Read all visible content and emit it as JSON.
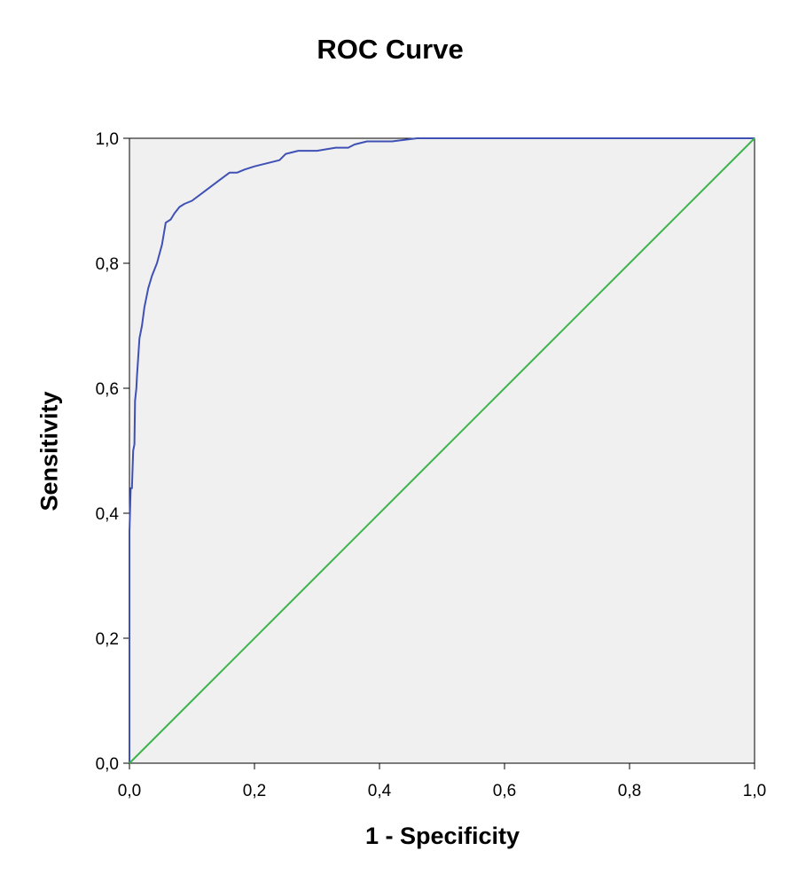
{
  "chart_data": {
    "type": "line",
    "title": "ROC Curve",
    "xlabel": "1 - Specificity",
    "ylabel": "Sensitivity",
    "xlim": [
      0,
      1
    ],
    "ylim": [
      0,
      1
    ],
    "x_ticks": [
      "0,0",
      "0,2",
      "0,4",
      "0,6",
      "0,8",
      "1,0"
    ],
    "y_ticks": [
      "0,0",
      "0,2",
      "0,4",
      "0,6",
      "0,8",
      "1,0"
    ],
    "grid": false,
    "legend": "none",
    "colors": {
      "plot_background": "#f0f0f0",
      "roc": "#3f51b5",
      "reference": "#3cb44b"
    },
    "series": [
      {
        "color": "#3f51b5",
        "x": [
          0,
          0,
          0.002,
          0.004,
          0.006,
          0.008,
          0.009,
          0.011,
          0.012,
          0.014,
          0.016,
          0.02,
          0.024,
          0.03,
          0.036,
          0.044,
          0.052,
          0.058,
          0.066,
          0.072,
          0.08,
          0.088,
          0.1,
          0.12,
          0.14,
          0.16,
          0.172,
          0.184,
          0.2,
          0.22,
          0.24,
          0.25,
          0.27,
          0.3,
          0.33,
          0.35,
          0.36,
          0.38,
          0.42,
          0.46,
          0.48,
          0.6,
          0.8,
          1.0
        ],
        "y": [
          0,
          0.37,
          0.44,
          0.44,
          0.5,
          0.51,
          0.58,
          0.6,
          0.62,
          0.65,
          0.68,
          0.7,
          0.73,
          0.76,
          0.78,
          0.8,
          0.83,
          0.865,
          0.87,
          0.88,
          0.89,
          0.895,
          0.9,
          0.915,
          0.93,
          0.945,
          0.945,
          0.95,
          0.955,
          0.96,
          0.965,
          0.975,
          0.98,
          0.98,
          0.985,
          0.985,
          0.99,
          0.995,
          0.995,
          1.0,
          1.0,
          1.0,
          1.0,
          1.0
        ]
      },
      {
        "color": "#3cb44b",
        "x": [
          0,
          1
        ],
        "y": [
          0,
          1
        ]
      }
    ]
  }
}
